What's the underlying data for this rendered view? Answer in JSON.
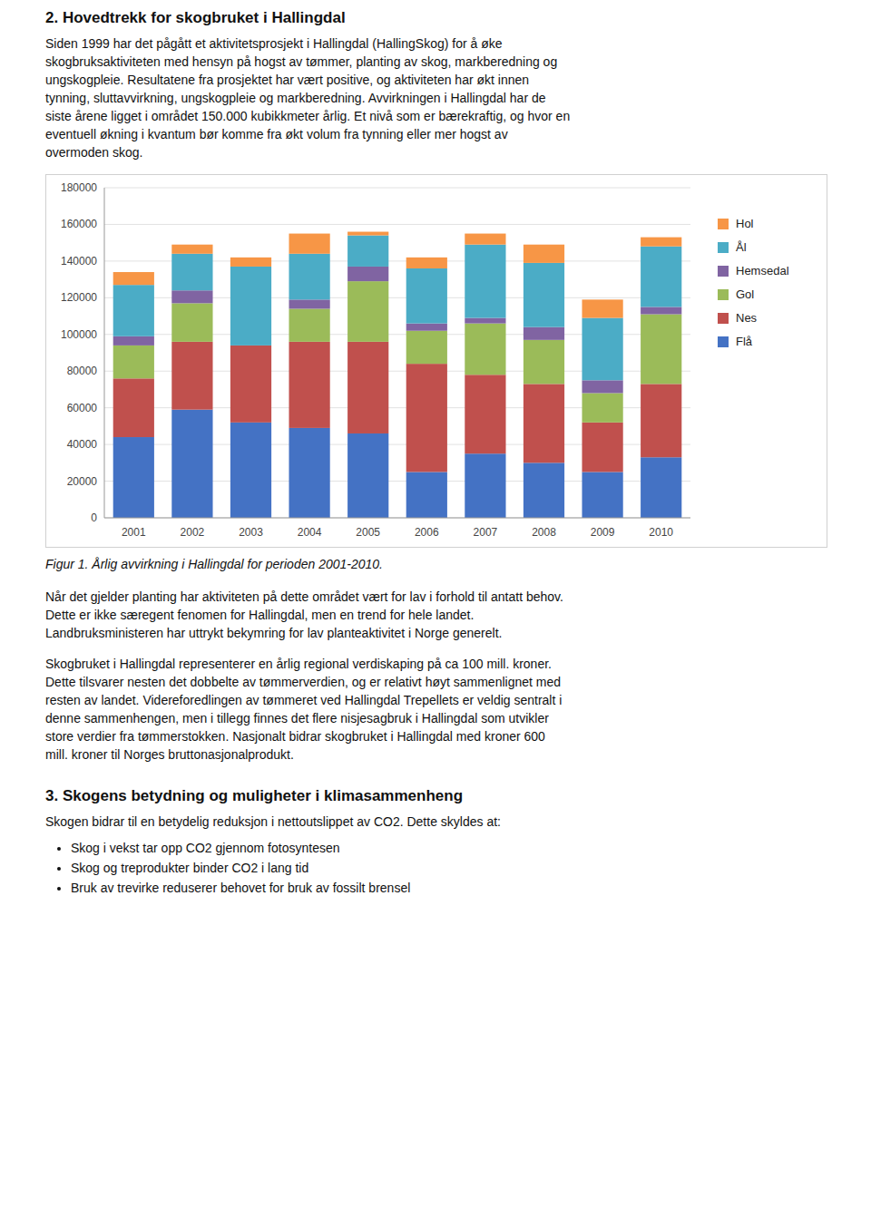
{
  "page_title": "2. Hovedtrekk for skogbruket i Hallingdal",
  "body_text": [
    "Siden 1999 har det pågått et aktivitetsprosjekt i Hallingdal (HallingSkog) for å øke",
    "skogbruksaktiviteten med hensyn på hogst av tømmer, planting av skog, markberedning og",
    "ungskogpleie. Resultatene fra prosjektet har vært positive, og aktiviteten har økt innen",
    "tynning, sluttavvirkning, ungskogpleie og markberedning. Avvirkningen i Hallingdal har de",
    "siste årene ligget i området 150.000 kubikkmeter årlig. Et nivå som er bærekraftig, og hvor en",
    "eventuell økning i kvantum bør komme fra økt volum fra tynning eller mer hogst av",
    "overmoden skog."
  ],
  "below_caption_paragraphs": [
    [
      "Når det gjelder planting har aktiviteten på dette området vært for lav i forhold til antatt behov.",
      "Dette er ikke særegent fenomen for Hallingdal, men en trend for hele landet.",
      "Landbruksministeren har uttrykt bekymring for lav planteaktivitet i Norge generelt."
    ],
    [
      "Skogbruket i Hallingdal representerer en årlig regional verdiskaping på ca 100 mill. kroner.",
      "Dette tilsvarer nesten det dobbelte av tømmerverdien, og er relativt høyt sammenlignet med",
      "resten av landet. Videreforedlingen av tømmeret ved Hallingdal Trepellets er veldig sentralt i",
      "denne sammenhengen, men i tillegg finnes det flere nisjesagbruk i Hallingdal som utvikler",
      "store verdier fra tømmerstokken. Nasjonalt bidrar skogbruket i Hallingdal med kroner 600",
      "mill. kroner til Norges bruttonasjonalprodukt."
    ]
  ],
  "section3_title": "3. Skogens betydning og muligheter i klimasammenheng",
  "section3_intro": "Skogen bidrar til en betydelig reduksjon i nettoutslippet av CO2. Dette skyldes at:",
  "section3_bullets": [
    "Skog i vekst tar opp CO2 gjennom fotosyntesen",
    "Skog og treprodukter binder CO2 i lang tid",
    "Bruk av trevirke reduserer behovet for bruk av fossilt brensel"
  ],
  "chart_data": {
    "type": "bar",
    "stacked": true,
    "title": "Figur 1. Årlig avvirkning i Hallingdal for perioden 2001-2010.",
    "categories": [
      "2001",
      "2002",
      "2003",
      "2004",
      "2005",
      "2006",
      "2007",
      "2008",
      "2009",
      "2010"
    ],
    "series": [
      {
        "name": "Flå",
        "color": "#4472C4",
        "values": [
          44000,
          59000,
          52000,
          49000,
          46000,
          25000,
          35000,
          30000,
          25000,
          33000
        ]
      },
      {
        "name": "Nes",
        "color": "#C0504D",
        "values": [
          32000,
          37000,
          42000,
          47000,
          50000,
          59000,
          43000,
          43000,
          27000,
          40000
        ]
      },
      {
        "name": "Gol",
        "color": "#9BBB59",
        "values": [
          18000,
          21000,
          0,
          18000,
          33000,
          18000,
          28000,
          24000,
          16000,
          38000
        ]
      },
      {
        "name": "Hemsedal",
        "color": "#8064A2",
        "values": [
          5000,
          7000,
          0,
          5000,
          8000,
          4000,
          3000,
          7000,
          7000,
          4000
        ]
      },
      {
        "name": "Ål",
        "color": "#4BACC6",
        "values": [
          28000,
          20000,
          43000,
          25000,
          17000,
          30000,
          40000,
          35000,
          34000,
          33000
        ]
      },
      {
        "name": "Hol",
        "color": "#F79646",
        "values": [
          7000,
          5000,
          5000,
          11000,
          2000,
          6000,
          6000,
          10000,
          10000,
          5000
        ]
      }
    ],
    "ylim": [
      0,
      180000
    ],
    "yticks": [
      0,
      20000,
      40000,
      60000,
      80000,
      100000,
      120000,
      140000,
      160000,
      180000
    ],
    "grid": true,
    "legend": "right"
  }
}
